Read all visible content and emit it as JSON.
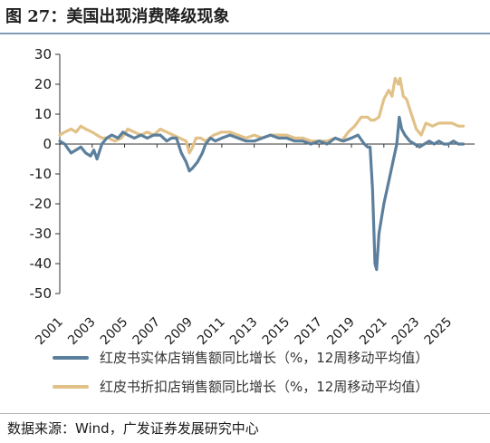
{
  "figure": {
    "title": "图 27：美国出现消费降级现象",
    "source": "数据来源：Wind，广发证券发展研究中心"
  },
  "colors": {
    "series_blue": "#5b7f9c",
    "series_gold": "#e2c188",
    "rule": "#7f9cb6",
    "axis": "#333333"
  },
  "chart_data": {
    "type": "line",
    "ylim": [
      -50,
      30
    ],
    "yticks": [
      30,
      20,
      10,
      0,
      -10,
      -20,
      -30,
      -40,
      -50
    ],
    "xlim": [
      2001,
      2026.6
    ],
    "xticks": [
      2001,
      2003,
      2005,
      2007,
      2009,
      2011,
      2013,
      2015,
      2017,
      2019,
      2021,
      2023,
      2025
    ],
    "x_tick_labels": [
      "2001",
      "2003",
      "2005",
      "2007",
      "2009",
      "2011",
      "2013",
      "2015",
      "2017",
      "2019",
      "2021",
      "2023",
      "2025"
    ],
    "xlabel": "",
    "ylabel": "",
    "grid": false,
    "legend_position": "bottom",
    "series": [
      {
        "name": "红皮书实体店销售额同比增长（%，12周移动平均值）",
        "color": "#5b7f9c",
        "x": [
          2001.0,
          2001.3,
          2001.7,
          2002.0,
          2002.3,
          2002.6,
          2002.9,
          2003.1,
          2003.3,
          2003.6,
          2003.9,
          2004.2,
          2004.6,
          2004.9,
          2005.2,
          2005.6,
          2006.0,
          2006.4,
          2006.8,
          2007.2,
          2007.6,
          2007.9,
          2008.2,
          2008.5,
          2008.8,
          2009.0,
          2009.2,
          2009.5,
          2009.8,
          2010.0,
          2010.3,
          2010.6,
          2011.0,
          2011.5,
          2012.0,
          2012.5,
          2013.0,
          2013.5,
          2014.0,
          2014.5,
          2015.0,
          2015.5,
          2016.0,
          2016.5,
          2017.0,
          2017.5,
          2018.0,
          2018.5,
          2019.0,
          2019.4,
          2019.8,
          2020.0,
          2020.15,
          2020.3,
          2020.45,
          2020.55,
          2020.7,
          2020.85,
          2021.0,
          2021.2,
          2021.4,
          2021.6,
          2021.8,
          2021.95,
          2022.1,
          2022.3,
          2022.6,
          2022.9,
          2023.2,
          2023.5,
          2023.8,
          2024.1,
          2024.4,
          2024.7,
          2025.0,
          2025.3,
          2025.6,
          2025.9
        ],
        "values": [
          1,
          0,
          -3,
          -2,
          -1,
          -3,
          -4,
          -2,
          -5,
          0,
          2,
          3,
          2,
          4,
          3,
          2,
          3,
          2,
          3,
          3,
          1,
          2,
          2,
          -3,
          -6,
          -9,
          -8,
          -6,
          -3,
          0,
          2,
          1,
          2,
          3,
          2,
          1,
          1,
          2,
          3,
          2,
          2,
          1,
          1,
          0,
          1,
          0,
          2,
          1,
          2,
          3,
          0,
          -1,
          -1,
          -15,
          -40,
          -42,
          -30,
          -25,
          -20,
          -15,
          -10,
          -5,
          0,
          9,
          5,
          3,
          1,
          0,
          -1,
          0,
          1,
          0,
          1,
          0,
          0,
          1,
          0,
          0
        ]
      },
      {
        "name": "红皮书折扣店销售额同比增长（%，12周移动平均值）",
        "color": "#e2c188",
        "x": [
          2001.0,
          2001.3,
          2001.7,
          2002.0,
          2002.3,
          2002.6,
          2003.0,
          2003.3,
          2003.6,
          2004.0,
          2004.4,
          2004.8,
          2005.2,
          2005.6,
          2006.0,
          2006.4,
          2006.8,
          2007.2,
          2007.6,
          2008.0,
          2008.4,
          2008.8,
          2009.0,
          2009.2,
          2009.4,
          2009.7,
          2010.0,
          2010.5,
          2011.0,
          2011.5,
          2012.0,
          2012.5,
          2013.0,
          2013.5,
          2014.0,
          2014.5,
          2015.0,
          2015.5,
          2016.0,
          2016.5,
          2017.0,
          2017.5,
          2018.0,
          2018.4,
          2018.8,
          2019.2,
          2019.6,
          2020.0,
          2020.2,
          2020.4,
          2020.7,
          2021.0,
          2021.3,
          2021.5,
          2021.7,
          2021.9,
          2022.0,
          2022.2,
          2022.4,
          2022.7,
          2023.0,
          2023.3,
          2023.6,
          2024.0,
          2024.4,
          2024.8,
          2025.2,
          2025.6,
          2025.9
        ],
        "values": [
          3,
          4,
          5,
          4,
          6,
          5,
          4,
          3,
          2,
          2,
          1,
          2,
          5,
          4,
          3,
          4,
          3,
          5,
          4,
          3,
          2,
          1,
          -3,
          -1,
          2,
          2,
          1,
          3,
          4,
          4,
          3,
          2,
          3,
          2,
          3,
          3,
          3,
          2,
          2,
          1,
          1,
          1,
          2,
          1,
          4,
          6,
          9,
          9,
          8,
          8,
          9,
          15,
          18,
          16,
          22,
          20,
          22,
          16,
          15,
          10,
          5,
          3,
          7,
          6,
          7,
          7,
          7,
          6,
          6
        ]
      }
    ]
  },
  "legend": [
    {
      "label": "红皮书实体店销售额同比增长（%，12周移动平均值）",
      "color": "#5b7f9c"
    },
    {
      "label": "红皮书折扣店销售额同比增长（%，12周移动平均值）",
      "color": "#e2c188"
    }
  ]
}
